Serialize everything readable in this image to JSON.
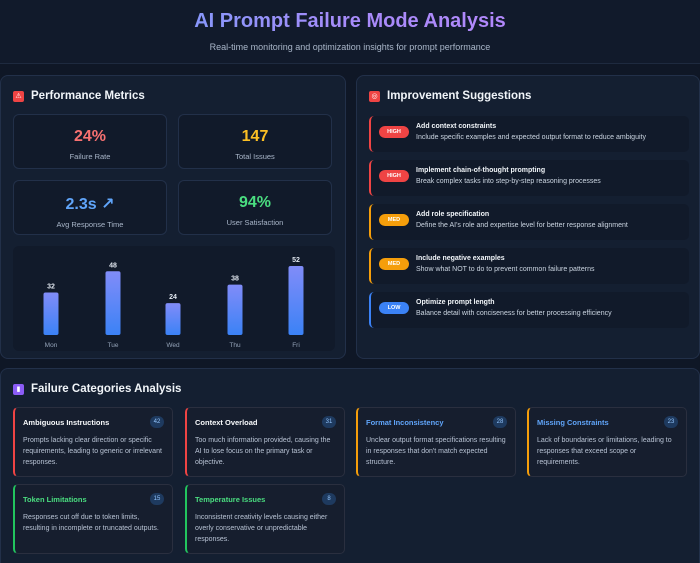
{
  "header": {
    "title": "AI Prompt Failure Mode Analysis",
    "subtitle": "Real-time monitoring and optimization insights for prompt performance"
  },
  "metrics_panel": {
    "title": "Performance Metrics",
    "icon": "warning-icon",
    "metrics": [
      {
        "value": "24%",
        "label": "Failure Rate",
        "color": "#f87171"
      },
      {
        "value": "147",
        "label": "Total Issues",
        "color": "#fbbf24"
      },
      {
        "value": "2.3s ↗",
        "label": "Avg Response Time",
        "color": "#60a5fa"
      },
      {
        "value": "94%",
        "label": "User Satisfaction",
        "color": "#4ade80"
      }
    ]
  },
  "chart_data": {
    "type": "bar",
    "categories": [
      "Mon",
      "Tue",
      "Wed",
      "Thu",
      "Fri"
    ],
    "values": [
      32,
      48,
      24,
      38,
      52
    ],
    "ylim": [
      0,
      55
    ],
    "bar_color_top": "#818cf8",
    "bar_color_bottom": "#3b82f6"
  },
  "suggestions_panel": {
    "title": "Improvement Suggestions",
    "icon": "target-icon",
    "items": [
      {
        "priority": "HIGH",
        "title": "Add context constraints",
        "desc": "Include specific examples and expected output format to reduce ambiguity",
        "color": "#ef4444"
      },
      {
        "priority": "HIGH",
        "title": "Implement chain-of-thought prompting",
        "desc": "Break complex tasks into step-by-step reasoning processes",
        "color": "#ef4444"
      },
      {
        "priority": "MED",
        "title": "Add role specification",
        "desc": "Define the AI's role and expertise level for better response alignment",
        "color": "#f59e0b"
      },
      {
        "priority": "MED",
        "title": "Include negative examples",
        "desc": "Show what NOT to do to prevent common failure patterns",
        "color": "#f59e0b"
      },
      {
        "priority": "LOW",
        "title": "Optimize prompt length",
        "desc": "Balance detail with conciseness for better processing efficiency",
        "color": "#3b82f6"
      }
    ]
  },
  "categories_panel": {
    "title": "Failure Categories Analysis",
    "icon": "chart-icon",
    "items": [
      {
        "title": "Ambiguous Instructions",
        "count": "42",
        "desc": "Prompts lacking clear direction or specific requirements, leading to generic or irrelevant responses.",
        "color": "#ef4444",
        "title_color": "#f8fafc"
      },
      {
        "title": "Context Overload",
        "count": "31",
        "desc": "Too much information provided, causing the AI to lose focus on the primary task or objective.",
        "color": "#ef4444",
        "title_color": "#f8fafc"
      },
      {
        "title": "Format Inconsistency",
        "count": "28",
        "desc": "Unclear output format specifications resulting in responses that don't match expected structure.",
        "color": "#f59e0b",
        "title_color": "#60a5fa"
      },
      {
        "title": "Missing Constraints",
        "count": "23",
        "desc": "Lack of boundaries or limitations, leading to responses that exceed scope or requirements.",
        "color": "#f59e0b",
        "title_color": "#60a5fa"
      },
      {
        "title": "Token Limitations",
        "count": "15",
        "desc": "Responses cut off due to token limits, resulting in incomplete or truncated outputs.",
        "color": "#22c55e",
        "title_color": "#4ade80"
      },
      {
        "title": "Temperature Issues",
        "count": "8",
        "desc": "Inconsistent creativity levels causing either overly conservative or unpredictable responses.",
        "color": "#22c55e",
        "title_color": "#4ade80"
      }
    ]
  }
}
